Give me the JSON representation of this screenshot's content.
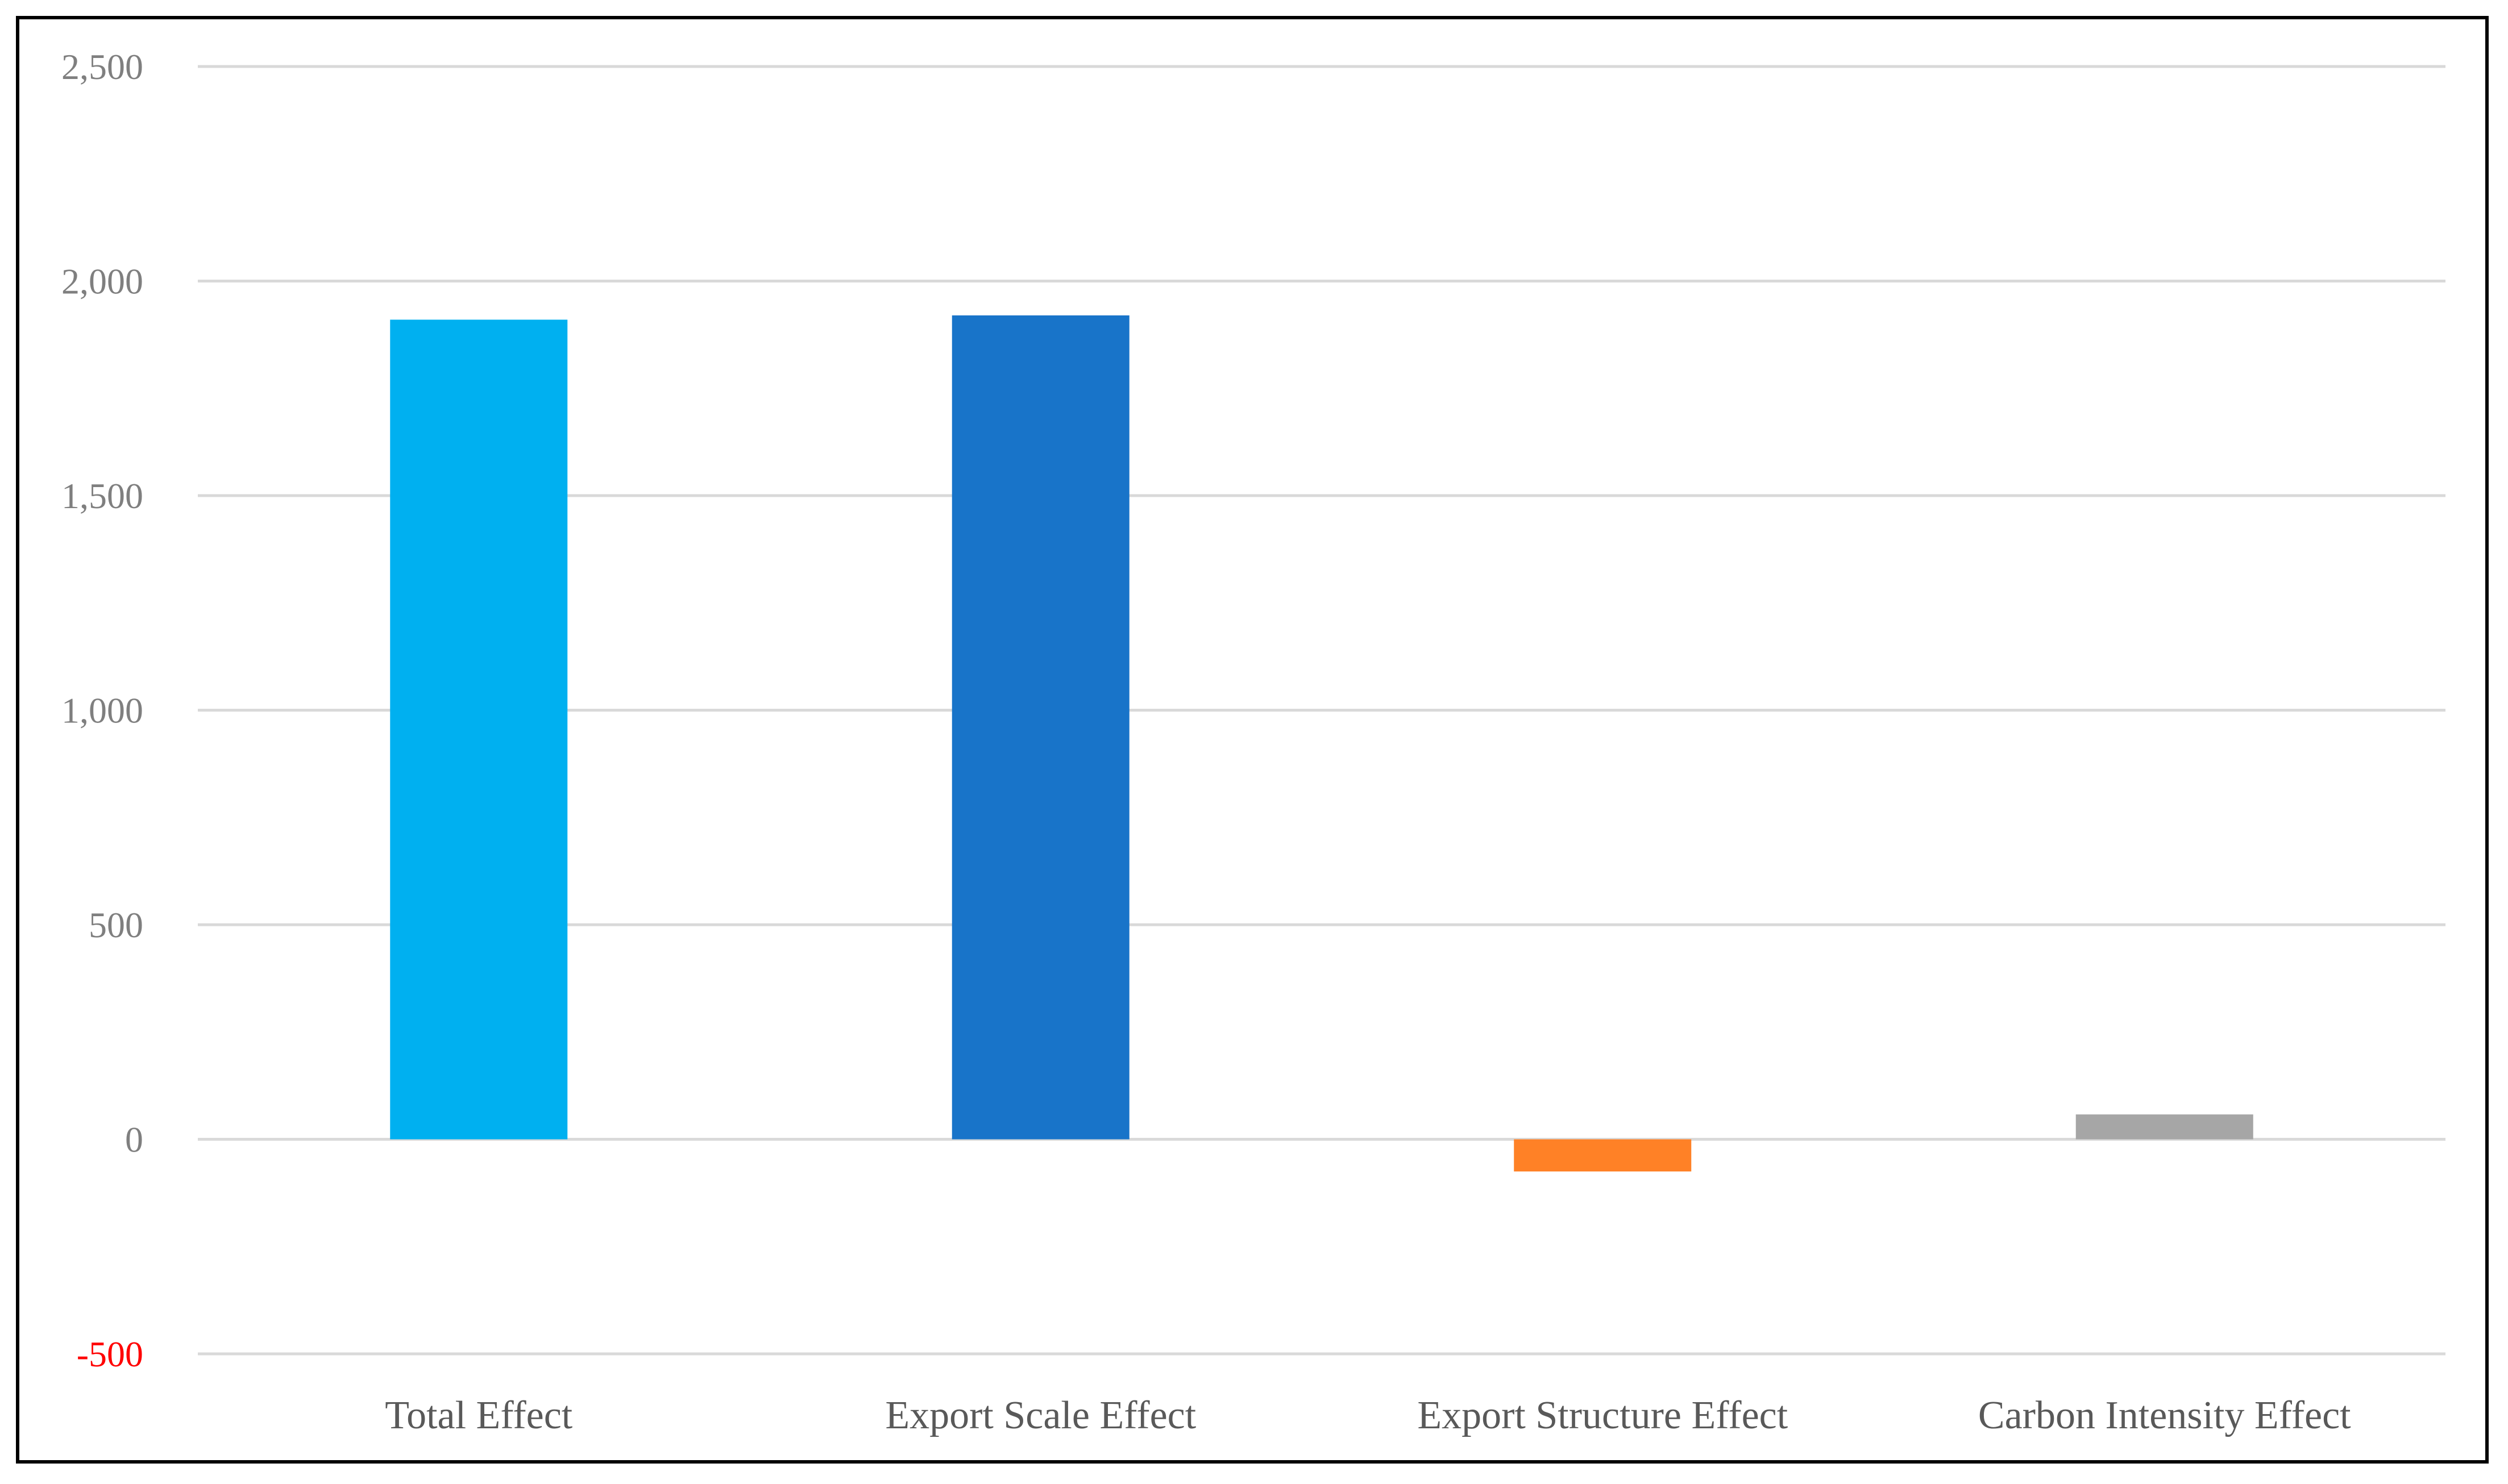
{
  "chart_data": {
    "type": "bar",
    "categories": [
      "Total Effect",
      "Export Scale Effect",
      "Export Structure Effect",
      "Carbon Intensity Effect"
    ],
    "values": [
      1910,
      1920,
      -75,
      58
    ],
    "colors": [
      "#00B0F0",
      "#1874C9",
      "#FF8126",
      "#A6A6A6"
    ],
    "ylim": [
      -500,
      2500
    ],
    "yticks": [
      {
        "value": 2500,
        "label": "2,500"
      },
      {
        "value": 2000,
        "label": "2,000"
      },
      {
        "value": 1500,
        "label": "1,500"
      },
      {
        "value": 1000,
        "label": "1,000"
      },
      {
        "value": 500,
        "label": "500"
      },
      {
        "value": 0,
        "label": "0"
      },
      {
        "value": -500,
        "label": "-500"
      }
    ],
    "negative_tick_color": "#FF0000",
    "grid": true,
    "title": "",
    "xlabel": "",
    "ylabel": ""
  }
}
